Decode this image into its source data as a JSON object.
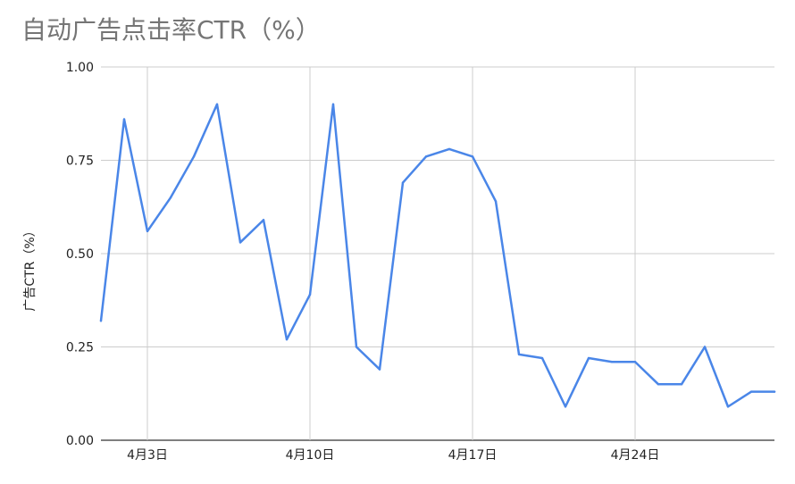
{
  "chart_data": {
    "type": "line",
    "title": "自动广告点击率CTR（%）",
    "xlabel": "",
    "ylabel": "广告CTR（%）",
    "ylim": [
      0,
      1
    ],
    "yticks": [
      {
        "value": 0,
        "label": "0.00"
      },
      {
        "value": 0.25,
        "label": "0.25"
      },
      {
        "value": 0.5,
        "label": "0.50"
      },
      {
        "value": 0.75,
        "label": "0.75"
      },
      {
        "value": 1,
        "label": "1.00"
      }
    ],
    "xlim": [
      "2024-04-01",
      "2024-04-30"
    ],
    "xticks": [
      {
        "x": "2024-04-03",
        "label": "4月3日"
      },
      {
        "x": "2024-04-10",
        "label": "4月10日"
      },
      {
        "x": "2024-04-17",
        "label": "4月17日"
      },
      {
        "x": "2024-04-24",
        "label": "4月24日"
      }
    ],
    "grid": true,
    "series": [
      {
        "color": "#4a86e8",
        "points": [
          {
            "x": "2024-04-01",
            "y": 0.32
          },
          {
            "x": "2024-04-02",
            "y": 0.86
          },
          {
            "x": "2024-04-03",
            "y": 0.56
          },
          {
            "x": "2024-04-04",
            "y": 0.65
          },
          {
            "x": "2024-04-05",
            "y": 0.76
          },
          {
            "x": "2024-04-06",
            "y": 0.9
          },
          {
            "x": "2024-04-07",
            "y": 0.53
          },
          {
            "x": "2024-04-08",
            "y": 0.59
          },
          {
            "x": "2024-04-09",
            "y": 0.27
          },
          {
            "x": "2024-04-10",
            "y": 0.39
          },
          {
            "x": "2024-04-11",
            "y": 0.9
          },
          {
            "x": "2024-04-12",
            "y": 0.25
          },
          {
            "x": "2024-04-13",
            "y": 0.19
          },
          {
            "x": "2024-04-14",
            "y": 0.69
          },
          {
            "x": "2024-04-15",
            "y": 0.76
          },
          {
            "x": "2024-04-16",
            "y": 0.78
          },
          {
            "x": "2024-04-17",
            "y": 0.76
          },
          {
            "x": "2024-04-18",
            "y": 0.64
          },
          {
            "x": "2024-04-19",
            "y": 0.23
          },
          {
            "x": "2024-04-20",
            "y": 0.22
          },
          {
            "x": "2024-04-21",
            "y": 0.09
          },
          {
            "x": "2024-04-22",
            "y": 0.22
          },
          {
            "x": "2024-04-23",
            "y": 0.21
          },
          {
            "x": "2024-04-24",
            "y": 0.21
          },
          {
            "x": "2024-04-25",
            "y": 0.15
          },
          {
            "x": "2024-04-26",
            "y": 0.15
          },
          {
            "x": "2024-04-27",
            "y": 0.25
          },
          {
            "x": "2024-04-28",
            "y": 0.09
          },
          {
            "x": "2024-04-29",
            "y": 0.13
          },
          {
            "x": "2024-04-30",
            "y": 0.13
          }
        ]
      }
    ]
  }
}
